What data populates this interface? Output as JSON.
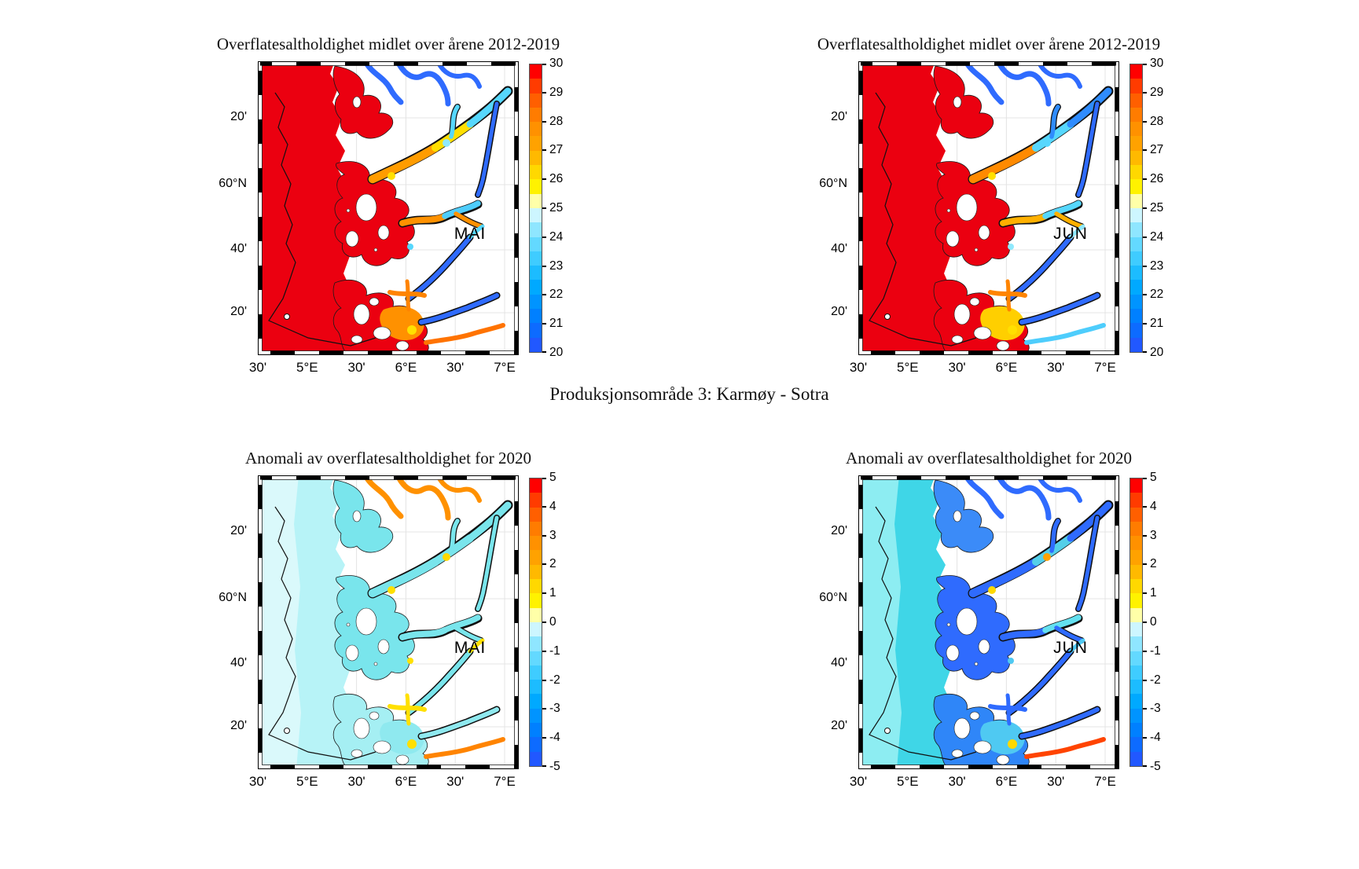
{
  "suptitle": "Produksjonsområde 3: Karmøy - Sotra",
  "x_tick_labels": [
    "30'",
    "5°E",
    "30'",
    "6°E",
    "30'",
    "7°E"
  ],
  "y_tick_labels": [
    "20'",
    "60°N",
    "40'",
    "20'"
  ],
  "palettes": {
    "salinity": {
      "unit_ticks": [
        20,
        21,
        22,
        23,
        24,
        25,
        26,
        27,
        28,
        29,
        30
      ],
      "band_colors": [
        "#2158ff",
        "#0d6bff",
        "#0080ff",
        "#0094ff",
        "#00a9ff",
        "#1cbcff",
        "#3fccff",
        "#63d9ff",
        "#8fe6ff",
        "#cdf6ff",
        "#ffffa8",
        "#fff200",
        "#ffd800",
        "#ffb900",
        "#ffa200",
        "#ff9100",
        "#ff7c00",
        "#ff5f00",
        "#ff3b00",
        "#ff0000"
      ]
    },
    "anomaly": {
      "unit_ticks": [
        -5,
        -4,
        -3,
        -2,
        -1,
        0,
        1,
        2,
        3,
        4,
        5
      ],
      "band_colors": [
        "#2158ff",
        "#0d6bff",
        "#0080ff",
        "#0094ff",
        "#00a9ff",
        "#1cbcff",
        "#3fccff",
        "#63d9ff",
        "#8fe6ff",
        "#cdf6ff",
        "#ffffa8",
        "#fff200",
        "#ffd800",
        "#ffb900",
        "#ffa200",
        "#ff9100",
        "#ff7c00",
        "#ff5f00",
        "#ff3b00",
        "#ff0000"
      ]
    }
  },
  "panels": [
    {
      "title": "Overflatesaltholdighet midlet over årene 2012-2019",
      "month": "MAI",
      "palette": "salinity",
      "map_colors": {
        "sea": "#eb0010",
        "sea_outer": "#eb0010",
        "north_blob": "#eb0010",
        "fjord_main": "#eb0010",
        "south_blob": "#eb0010",
        "south_hot": "#ff9100",
        "arm_n": "#2f6bfe",
        "arm_v": "#2f6bfe",
        "ne1": "#ff9c00",
        "ne2": "#ffdf00",
        "ne3": "#56d7fd",
        "me1": "#ff9100",
        "me2": "#4ecdfc",
        "arm_s": "#2f6bfe",
        "arm_s2": "#2f6bfe",
        "se_tip": "#ff7300",
        "arm_x": "#ff8400",
        "spot1": "#ffe000",
        "spot2": "#8fe9fd",
        "spot3": "#56d7fd"
      }
    },
    {
      "title": "Overflatesaltholdighet midlet over årene 2012-2019",
      "month": "JUN",
      "palette": "salinity",
      "map_colors": {
        "sea": "#eb0010",
        "sea_outer": "#eb0010",
        "north_blob": "#eb0010",
        "fjord_main": "#eb0010",
        "south_blob": "#eb0010",
        "south_hot": "#ffcf00",
        "arm_n": "#2f6bfe",
        "arm_v": "#2f6bfe",
        "ne1": "#ff8a00",
        "ne2": "#56d7fd",
        "ne3": "#2f8cfe",
        "me1": "#ffb000",
        "me2": "#56d7fd",
        "arm_s": "#2f6bfe",
        "arm_s2": "#2f6bfe",
        "se_tip": "#4ecdfc",
        "arm_x": "#ff8400",
        "spot1": "#ffe000",
        "spot2": "#56d7fd",
        "spot3": "#8fe9fd"
      }
    },
    {
      "title": "Anomali av overflatesaltholdighet for 2020",
      "month": "MAI",
      "palette": "anomaly",
      "map_colors": {
        "sea": "#b7f3f7",
        "sea_outer": "#daf9fb",
        "north_blob": "#79e5ec",
        "fjord_main": "#79e5ec",
        "south_blob": "#a5eff3",
        "south_hot": "#8fe9ef",
        "arm_n": "#ff9100",
        "arm_v": "#79e5ec",
        "ne1": "#79e5ec",
        "ne2": "#79e5ec",
        "ne3": "#79e5ec",
        "me1": "#79e5ec",
        "me2": "#79e5ec",
        "arm_s": "#79e5ec",
        "arm_s2": "#8fe9ef",
        "se_tip": "#ff8400",
        "arm_x": "#ffe000",
        "spot1": "#ffe000",
        "spot2": "#ffd900",
        "spot3": "#ffe000"
      }
    },
    {
      "title": "Anomali av overflatesaltholdighet for 2020",
      "month": "JUN",
      "palette": "anomaly",
      "map_colors": {
        "sea": "#3fd6e7",
        "sea_outer": "#8dedf2",
        "north_blob": "#3b8bf8",
        "fjord_main": "#2f6bfe",
        "south_blob": "#2f86f8",
        "south_hot": "#4fc9f2",
        "arm_n": "#2f6bfe",
        "arm_v": "#2f6bfe",
        "ne1": "#2f6bfe",
        "ne2": "#54cfe9",
        "ne3": "#2f6bfe",
        "me1": "#2f6bfe",
        "me2": "#63e0f0",
        "arm_s": "#2f6bfe",
        "arm_s2": "#2f6bfe",
        "se_tip": "#ff4400",
        "arm_x": "#2f6bfe",
        "spot1": "#ffd900",
        "spot2": "#ffa200",
        "spot3": "#4fc9f2"
      }
    }
  ]
}
